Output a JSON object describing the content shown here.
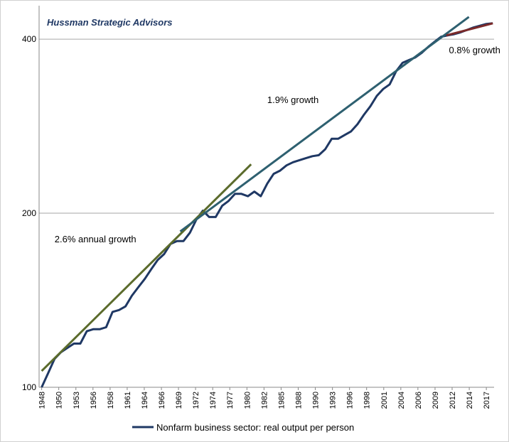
{
  "chart_data": {
    "type": "line",
    "subtitle": "Hussman Strategic Advisors",
    "log_scale": true,
    "grid": true,
    "legend": "bottom",
    "ylim": [
      100,
      457
    ],
    "yticks": [
      100,
      200,
      400
    ],
    "xlim": [
      1947.6,
      2018.2
    ],
    "xticks": [
      {
        "value": 1948,
        "label": "1948"
      },
      {
        "value": 1950.65,
        "label": "1950"
      },
      {
        "value": 1953.31,
        "label": "1953"
      },
      {
        "value": 1955.96,
        "label": "1956"
      },
      {
        "value": 1958.62,
        "label": "1958"
      },
      {
        "value": 1961.27,
        "label": "1961"
      },
      {
        "value": 1963.92,
        "label": "1964"
      },
      {
        "value": 1966.58,
        "label": "1966"
      },
      {
        "value": 1969.23,
        "label": "1969"
      },
      {
        "value": 1971.88,
        "label": "1972"
      },
      {
        "value": 1974.54,
        "label": "1974"
      },
      {
        "value": 1977.19,
        "label": "1977"
      },
      {
        "value": 1979.85,
        "label": "1980"
      },
      {
        "value": 1982.5,
        "label": "1982"
      },
      {
        "value": 1985.15,
        "label": "1985"
      },
      {
        "value": 1987.81,
        "label": "1988"
      },
      {
        "value": 1990.46,
        "label": "1990"
      },
      {
        "value": 1993.12,
        "label": "1993"
      },
      {
        "value": 1995.77,
        "label": "1996"
      },
      {
        "value": 1998.42,
        "label": "1998"
      },
      {
        "value": 2001.08,
        "label": "2001"
      },
      {
        "value": 2003.73,
        "label": "2004"
      },
      {
        "value": 2006.38,
        "label": "2006"
      },
      {
        "value": 2009.04,
        "label": "2009"
      },
      {
        "value": 2011.69,
        "label": "2012"
      },
      {
        "value": 2014.35,
        "label": "2014"
      },
      {
        "value": 2017,
        "label": "2017"
      }
    ],
    "x": [
      1948,
      1949,
      1950,
      1951,
      1952,
      1953,
      1954,
      1955,
      1956,
      1957,
      1958,
      1959,
      1960,
      1961,
      1962,
      1963,
      1964,
      1965,
      1966,
      1967,
      1968,
      1969,
      1970,
      1971,
      1972,
      1973,
      1974,
      1975,
      1976,
      1977,
      1978,
      1979,
      1980,
      1981,
      1982,
      1983,
      1984,
      1985,
      1986,
      1987,
      1988,
      1989,
      1990,
      1991,
      1992,
      1993,
      1994,
      1995,
      1996,
      1997,
      1998,
      1999,
      2000,
      2001,
      2002,
      2003,
      2004,
      2005,
      2006,
      2007,
      2008,
      2009,
      2010,
      2011,
      2012,
      2013,
      2014,
      2015,
      2016,
      2017,
      2018
    ],
    "series": [
      {
        "name": "Nonfarm business sector: real output per person",
        "color": "#1f3864",
        "values": [
          100,
          105.8,
          112,
          115,
          117,
          119,
          119,
          125,
          126,
          126,
          127,
          135,
          136,
          138,
          144,
          149,
          154,
          160,
          166,
          170,
          177,
          179,
          179,
          185,
          195,
          202,
          197,
          197,
          206,
          210,
          216,
          216,
          214,
          218,
          214,
          225,
          234,
          237,
          242,
          245,
          247,
          249,
          251,
          252,
          258,
          269,
          269,
          273,
          277,
          285,
          296,
          306,
          319,
          328,
          334,
          352,
          364,
          368,
          372,
          379,
          388,
          396,
          404,
          406,
          408,
          411,
          415,
          419,
          422,
          425,
          426
        ]
      }
    ],
    "trend_lines": [
      {
        "color": "#5b6b2c",
        "x": [
          1948,
          1980.5
        ],
        "values": [
          106.7,
          243
        ]
      },
      {
        "color": "#2e6070",
        "x": [
          1969.5,
          2014.3
        ],
        "values": [
          186,
          437
        ]
      },
      {
        "color": "#7b2a2a",
        "x": [
          2010.8,
          2018
        ],
        "values": [
          406,
          426
        ]
      }
    ],
    "annotations": [
      {
        "text": "2.6% annual growth",
        "x": 1950,
        "y": 178
      },
      {
        "text": "1.9% growth",
        "x": 1983,
        "y": 310
      },
      {
        "text": "0.8% growth",
        "x": 2011.2,
        "y": 378
      }
    ]
  }
}
